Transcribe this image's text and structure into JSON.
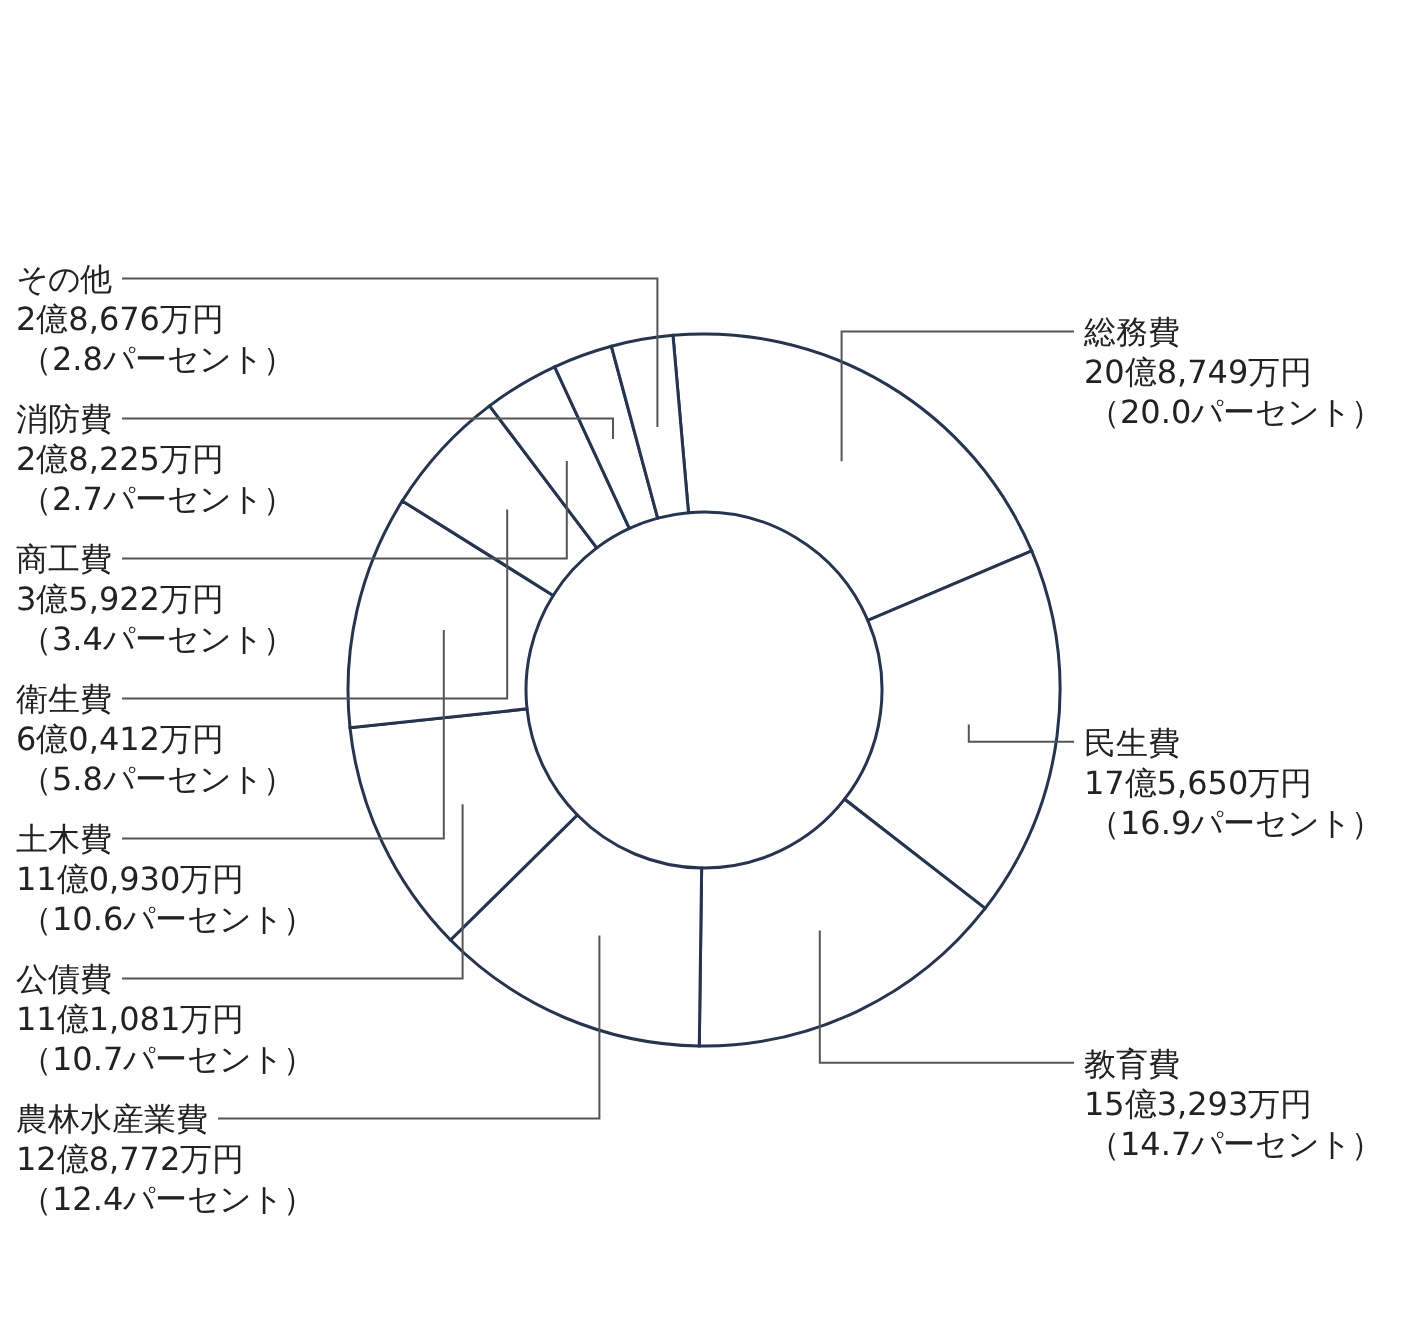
{
  "chart_data": {
    "type": "donut",
    "categories": [
      "総務費",
      "民生費",
      "教育費",
      "農林水産業費",
      "公債費",
      "土木費",
      "衛生費",
      "商工費",
      "消防費",
      "その他"
    ],
    "values": [
      20.0,
      16.9,
      14.7,
      12.4,
      10.7,
      10.6,
      5.8,
      3.4,
      2.7,
      2.8
    ],
    "value_labels": [
      "20億8,749万円（20.0パーセント）",
      "17億5,650万円（16.9パーセント）",
      "15億3,293万円（14.7パーセント）",
      "12億8,772万円（12.4パーセント）",
      "11億1,081万円（10.7パーセント）",
      "11億0,930万円（10.6パーセント）",
      "6億0,412万円（5.8パーセント）",
      "3億5,922万円（3.4パーセント）",
      "2億8,225万円（2.7パーセント）",
      "2億8,676万円（2.8パーセント）"
    ],
    "colors": [
      "#ffffff",
      "#ffffff",
      "#ffffff",
      "#ffffff",
      "#ffffff",
      "#ffffff",
      "#ffffff",
      "#ffffff",
      "#ffffff",
      "#ffffff"
    ]
  }
}
